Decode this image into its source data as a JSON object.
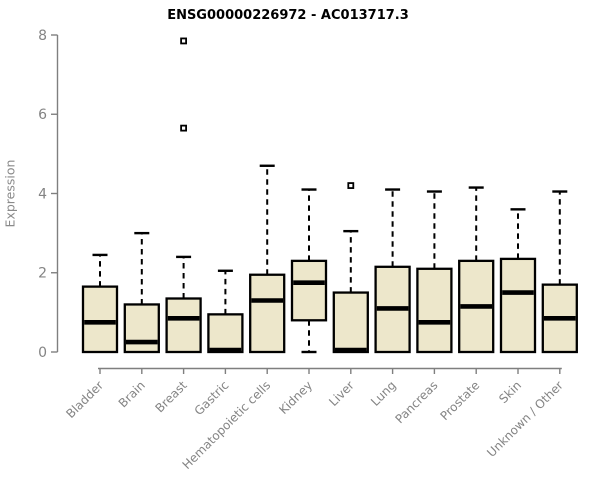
{
  "chart_data": {
    "type": "boxplot",
    "title": "ENSG00000226972 - AC013717.3",
    "xlabel": "",
    "ylabel": "Expression",
    "ylim": [
      0,
      8
    ],
    "yticks": [
      0,
      2,
      4,
      6,
      8
    ],
    "grid": false,
    "legend": false,
    "categories": [
      "Bladder",
      "Brain",
      "Breast",
      "Gastric",
      "Hematopoietic cells",
      "Kidney",
      "Liver",
      "Lung",
      "Pancreas",
      "Prostate",
      "Skin",
      "Unknown / Other"
    ],
    "boxes": [
      {
        "category": "Bladder",
        "whisker_low": 0,
        "q1": 0,
        "median": 0.75,
        "q3": 1.65,
        "whisker_high": 2.45,
        "outliers": []
      },
      {
        "category": "Brain",
        "whisker_low": 0,
        "q1": 0,
        "median": 0.25,
        "q3": 1.2,
        "whisker_high": 3.0,
        "outliers": []
      },
      {
        "category": "Breast",
        "whisker_low": 0,
        "q1": 0,
        "median": 0.85,
        "q3": 1.35,
        "whisker_high": 2.4,
        "outliers": [
          5.65,
          7.85
        ]
      },
      {
        "category": "Gastric",
        "whisker_low": 0,
        "q1": 0,
        "median": 0.05,
        "q3": 0.95,
        "whisker_high": 2.05,
        "outliers": []
      },
      {
        "category": "Hematopoietic cells",
        "whisker_low": 0,
        "q1": 0,
        "median": 1.3,
        "q3": 1.95,
        "whisker_high": 4.7,
        "outliers": []
      },
      {
        "category": "Kidney",
        "whisker_low": 0,
        "q1": 0.8,
        "median": 1.75,
        "q3": 2.3,
        "whisker_high": 4.1,
        "outliers": []
      },
      {
        "category": "Liver",
        "whisker_low": 0,
        "q1": 0,
        "median": 0.05,
        "q3": 1.5,
        "whisker_high": 3.05,
        "outliers": [
          4.2
        ]
      },
      {
        "category": "Lung",
        "whisker_low": 0,
        "q1": 0,
        "median": 1.1,
        "q3": 2.15,
        "whisker_high": 4.1,
        "outliers": []
      },
      {
        "category": "Pancreas",
        "whisker_low": 0,
        "q1": 0,
        "median": 0.75,
        "q3": 2.1,
        "whisker_high": 4.05,
        "outliers": []
      },
      {
        "category": "Prostate",
        "whisker_low": 0,
        "q1": 0,
        "median": 1.15,
        "q3": 2.3,
        "whisker_high": 4.15,
        "outliers": []
      },
      {
        "category": "Skin",
        "whisker_low": 0,
        "q1": 0,
        "median": 1.5,
        "q3": 2.35,
        "whisker_high": 3.6,
        "outliers": []
      },
      {
        "category": "Unknown / Other",
        "whisker_low": 0,
        "q1": 0,
        "median": 0.85,
        "q3": 1.7,
        "whisker_high": 4.05,
        "outliers": []
      }
    ],
    "colors": {
      "box_fill": "#EDE7CB",
      "box_stroke": "#000000",
      "median": "#000000",
      "whisker": "#000000",
      "outlier_fill": "#FFFFFF",
      "axis": "#7F7F7F",
      "labels": "#848484",
      "title": "#000000",
      "background": "#FFFFFF"
    }
  }
}
